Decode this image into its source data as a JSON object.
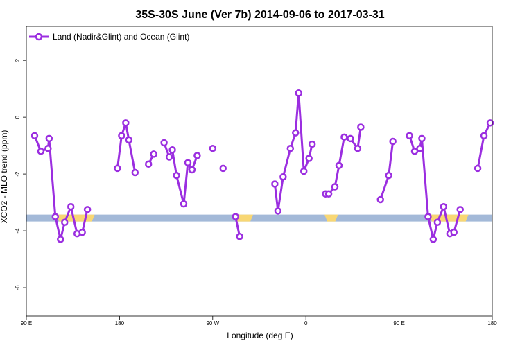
{
  "chart_data": {
    "type": "line",
    "title": "35S-30S June (Ver 7b)   2014-09-06 to 2017-03-31",
    "xlabel": "Longitude (deg E)",
    "ylabel": "XCO2 - MLO trend (ppm)",
    "xlim": [
      90,
      540
    ],
    "ylim": [
      -7,
      3.2
    ],
    "x_ticks": [
      {
        "value": 90,
        "label": "90 E"
      },
      {
        "value": 180,
        "label": "180"
      },
      {
        "value": 270,
        "label": "90 W"
      },
      {
        "value": 360,
        "label": "0"
      },
      {
        "value": 450,
        "label": "90 E"
      },
      {
        "value": 540,
        "label": "180"
      }
    ],
    "y_ticks": [
      {
        "value": 2,
        "label": "2"
      },
      {
        "value": 0,
        "label": "0"
      },
      {
        "value": -2,
        "label": "-2"
      },
      {
        "value": -4,
        "label": "-4"
      },
      {
        "value": -6,
        "label": "-6"
      }
    ],
    "grid": false,
    "legend_position": "top-left",
    "series_color": "#9b2ee0",
    "band_color": "#a3b9d8",
    "land_color": "#f8d774",
    "band_y": -3.55,
    "land_ranges": [
      [
        119,
        156
      ],
      [
        291,
        309
      ],
      [
        378,
        391
      ],
      [
        479,
        517
      ]
    ],
    "series": [
      {
        "name": "Land (Nadir&Glint) and Ocean (Glint)",
        "segments": [
          [
            [
              98,
              -0.65
            ],
            [
              104,
              -1.2
            ],
            [
              111,
              -1.1
            ],
            [
              112,
              -0.75
            ],
            [
              118,
              -3.5
            ],
            [
              123,
              -4.3
            ],
            [
              127,
              -3.7
            ],
            [
              133,
              -3.15
            ],
            [
              139,
              -4.1
            ],
            [
              144,
              -4.05
            ],
            [
              149,
              -3.25
            ]
          ],
          [
            [
              178,
              -1.8
            ],
            [
              182,
              -0.65
            ],
            [
              186,
              -0.2
            ],
            [
              189,
              -0.8
            ],
            [
              195,
              -1.95
            ]
          ],
          [
            [
              208,
              -1.65
            ],
            [
              213,
              -1.3
            ]
          ],
          [
            [
              223,
              -0.9
            ],
            [
              228,
              -1.4
            ],
            [
              231,
              -1.15
            ],
            [
              235,
              -2.05
            ],
            [
              242,
              -3.05
            ],
            [
              246,
              -1.6
            ],
            [
              250,
              -1.85
            ],
            [
              255,
              -1.35
            ]
          ],
          [
            [
              270,
              -1.1
            ]
          ],
          [
            [
              280,
              -1.8
            ]
          ],
          [
            [
              292,
              -3.5
            ],
            [
              296,
              -4.2
            ]
          ],
          [
            [
              330,
              -2.35
            ],
            [
              333,
              -3.3
            ],
            [
              338,
              -2.1
            ],
            [
              345,
              -1.1
            ],
            [
              350,
              -0.55
            ],
            [
              353,
              0.85
            ],
            [
              358,
              -1.9
            ],
            [
              363,
              -1.45
            ],
            [
              366,
              -0.95
            ]
          ],
          [
            [
              379,
              -2.7
            ],
            [
              382,
              -2.7
            ],
            [
              388,
              -2.45
            ],
            [
              392,
              -1.7
            ],
            [
              397,
              -0.7
            ],
            [
              403,
              -0.75
            ],
            [
              410,
              -1.1
            ],
            [
              413,
              -0.35
            ]
          ],
          [
            [
              432,
              -2.9
            ],
            [
              440,
              -2.05
            ],
            [
              444,
              -0.85
            ]
          ],
          [
            [
              460,
              -0.65
            ],
            [
              465,
              -1.2
            ],
            [
              470,
              -1.1
            ],
            [
              472,
              -0.75
            ],
            [
              478,
              -3.5
            ],
            [
              483,
              -4.3
            ],
            [
              487,
              -3.7
            ],
            [
              493,
              -3.15
            ],
            [
              499,
              -4.1
            ],
            [
              503,
              -4.05
            ],
            [
              509,
              -3.25
            ]
          ],
          [
            [
              526,
              -1.8
            ],
            [
              532,
              -0.65
            ],
            [
              538,
              -0.2
            ]
          ]
        ]
      }
    ]
  }
}
